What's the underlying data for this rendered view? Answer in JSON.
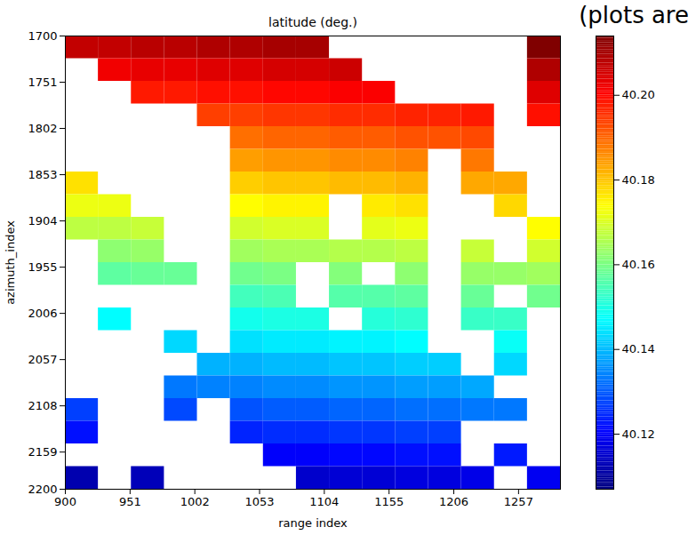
{
  "chart_data": {
    "type": "heatmap",
    "title": "latitude (deg.)",
    "annotation": "(plots are",
    "xlabel": "range index",
    "ylabel": "azimuth_index",
    "xlim": [
      900,
      1290
    ],
    "xticks": [
      900,
      951,
      1002,
      1053,
      1104,
      1155,
      1206,
      1257
    ],
    "ylim": [
      2200,
      1700
    ],
    "yticks": [
      1700,
      1751,
      1802,
      1853,
      1904,
      1955,
      2006,
      2057,
      2108,
      2159,
      2200
    ],
    "range_bins": [
      900,
      926,
      952,
      978,
      1004,
      1030,
      1056,
      1082,
      1108,
      1134,
      1160,
      1186,
      1212,
      1238,
      1264,
      1290
    ],
    "azimuth_bins": [
      1700,
      1725,
      1750,
      1775,
      1800,
      1825,
      1850,
      1875,
      1900,
      1925,
      1950,
      1975,
      2000,
      2025,
      2050,
      2075,
      2100,
      2125,
      2150,
      2175,
      2200
    ],
    "values": [
      [
        40.207,
        40.207,
        40.208,
        40.208,
        40.209,
        40.209,
        40.21,
        40.21,
        null,
        null,
        null,
        null,
        null,
        null,
        40.214
      ],
      [
        null,
        40.202,
        40.203,
        40.203,
        40.204,
        40.204,
        40.205,
        40.205,
        40.206,
        null,
        null,
        null,
        null,
        null,
        40.209
      ],
      [
        null,
        null,
        40.198,
        40.198,
        40.199,
        40.199,
        40.2,
        40.2,
        40.201,
        40.201,
        null,
        null,
        null,
        null,
        40.204
      ],
      [
        null,
        null,
        null,
        null,
        40.194,
        40.194,
        40.195,
        40.195,
        40.196,
        40.196,
        40.197,
        40.197,
        40.198,
        null,
        40.199
      ],
      [
        null,
        null,
        null,
        null,
        null,
        40.189,
        40.19,
        40.19,
        40.191,
        40.191,
        40.192,
        40.192,
        40.193,
        null,
        null
      ],
      [
        null,
        null,
        null,
        null,
        null,
        40.184,
        40.185,
        40.185,
        40.186,
        40.186,
        40.187,
        null,
        40.188,
        null,
        null
      ],
      [
        40.177,
        null,
        null,
        null,
        null,
        40.179,
        40.18,
        40.18,
        40.181,
        40.181,
        40.182,
        null,
        40.183,
        40.183,
        null
      ],
      [
        40.172,
        40.172,
        null,
        null,
        null,
        40.174,
        40.175,
        40.175,
        null,
        40.176,
        40.177,
        null,
        null,
        40.178,
        null
      ],
      [
        40.167,
        40.167,
        40.168,
        null,
        null,
        40.169,
        40.17,
        40.17,
        null,
        40.171,
        40.172,
        null,
        null,
        null,
        40.174
      ],
      [
        null,
        40.162,
        40.163,
        null,
        null,
        40.164,
        40.165,
        40.165,
        40.166,
        40.166,
        40.167,
        null,
        40.168,
        null,
        40.169
      ],
      [
        null,
        40.157,
        40.158,
        40.158,
        null,
        40.159,
        40.16,
        null,
        40.161,
        null,
        40.162,
        null,
        40.163,
        40.163,
        40.164
      ],
      [
        null,
        null,
        null,
        null,
        null,
        40.154,
        40.155,
        null,
        40.156,
        40.156,
        40.157,
        null,
        40.158,
        null,
        40.159
      ],
      [
        null,
        40.147,
        null,
        null,
        null,
        40.149,
        40.15,
        40.15,
        null,
        40.151,
        40.152,
        null,
        40.153,
        40.153,
        null
      ],
      [
        null,
        null,
        null,
        40.143,
        null,
        40.144,
        40.145,
        40.145,
        40.146,
        40.146,
        40.147,
        null,
        null,
        40.148,
        null
      ],
      [
        null,
        null,
        null,
        null,
        40.139,
        40.139,
        40.14,
        40.14,
        40.141,
        40.141,
        40.142,
        40.142,
        null,
        40.143,
        null
      ],
      [
        null,
        null,
        null,
        40.133,
        40.134,
        40.134,
        40.135,
        40.135,
        40.136,
        40.136,
        40.137,
        40.137,
        40.138,
        null,
        null
      ],
      [
        40.127,
        null,
        null,
        40.128,
        null,
        40.129,
        40.13,
        40.13,
        40.131,
        40.131,
        40.132,
        40.132,
        40.133,
        40.133,
        null
      ],
      [
        40.122,
        null,
        null,
        null,
        null,
        40.124,
        40.125,
        40.125,
        40.126,
        40.126,
        40.127,
        40.127,
        null,
        null,
        null
      ],
      [
        null,
        null,
        null,
        null,
        null,
        null,
        40.12,
        40.12,
        40.121,
        40.121,
        40.122,
        40.122,
        null,
        40.123,
        null
      ],
      [
        40.112,
        null,
        40.113,
        null,
        null,
        null,
        null,
        40.115,
        40.116,
        40.116,
        40.117,
        40.117,
        40.118,
        null,
        40.119
      ]
    ],
    "colorbar_lim": [
      40.107,
      40.214
    ],
    "colorbar_ticks": [
      40.12,
      40.14,
      40.16,
      40.18,
      {
        "value": 40.2,
        "label": "40.20"
      }
    ]
  }
}
